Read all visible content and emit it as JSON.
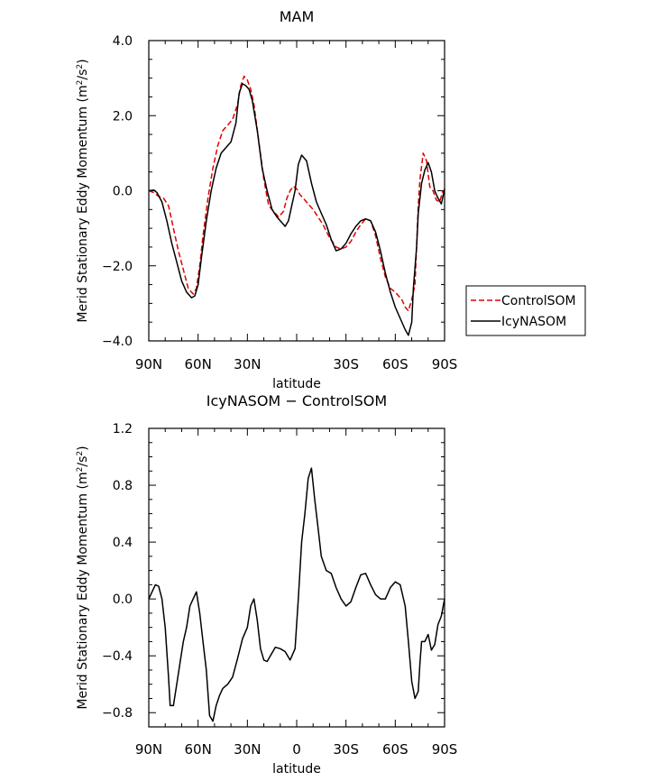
{
  "chart_data": [
    {
      "type": "line",
      "title": "MAM",
      "xlabel": "latitude",
      "ylabel": "Merid Stationary Eddy Momentum (m²/s²)",
      "ylabel_parts": [
        "Merid Stationary Eddy Momentum (m",
        "2",
        "/s",
        "2",
        ")"
      ],
      "xlim": [
        90,
        -90
      ],
      "ylim": [
        -4.0,
        4.0
      ],
      "x_ticks": [
        90,
        60,
        30,
        0,
        -30,
        -60,
        -90
      ],
      "x_tick_labels": [
        "90N",
        "60N",
        "30N",
        "",
        "30S",
        "60S",
        "90S"
      ],
      "y_ticks": [
        -4.0,
        -2.0,
        0.0,
        2.0,
        4.0
      ],
      "y_tick_labels": [
        "−4.0",
        "−2.0",
        "0.0",
        "2.0",
        "4.0"
      ],
      "legend": {
        "placement": "right-outside",
        "entries": [
          {
            "label": "ControlSOM",
            "color": "#e00000",
            "dash": "6,3"
          },
          {
            "label": "IcyNASOM",
            "color": "#000000",
            "dash": ""
          }
        ]
      },
      "series": [
        {
          "name": "ControlSOM",
          "color": "#e00000",
          "dash": "6,3",
          "x": [
            90,
            87,
            84,
            81,
            78,
            75,
            72,
            69,
            66,
            63,
            61,
            59,
            57,
            54,
            51,
            48,
            45,
            42,
            39,
            36,
            34,
            32,
            30,
            28,
            26,
            23,
            20,
            17,
            14,
            11,
            8,
            6,
            4,
            2,
            0,
            -2,
            -4,
            -7,
            -10,
            -13,
            -16,
            -20,
            -24,
            -27,
            -30,
            -33,
            -36,
            -39,
            -42,
            -45,
            -48,
            -51,
            -54,
            -57,
            -60,
            -62,
            -64,
            -66,
            -68,
            -70,
            -72,
            -74,
            -75,
            -77,
            -79,
            -81,
            -83,
            -85,
            -87,
            -89
          ],
          "y": [
            0.0,
            -0.05,
            -0.15,
            -0.2,
            -0.4,
            -1.0,
            -1.6,
            -2.1,
            -2.6,
            -2.75,
            -2.6,
            -2.0,
            -1.2,
            -0.2,
            0.6,
            1.2,
            1.6,
            1.75,
            1.9,
            2.3,
            2.8,
            3.05,
            2.95,
            2.7,
            2.3,
            1.3,
            0.3,
            -0.4,
            -0.55,
            -0.7,
            -0.55,
            -0.2,
            0.0,
            0.12,
            0.05,
            -0.1,
            -0.2,
            -0.35,
            -0.5,
            -0.7,
            -0.9,
            -1.25,
            -1.5,
            -1.55,
            -1.5,
            -1.35,
            -1.1,
            -0.9,
            -0.75,
            -0.8,
            -1.2,
            -1.8,
            -2.3,
            -2.6,
            -2.7,
            -2.8,
            -2.9,
            -3.1,
            -3.2,
            -2.9,
            -2.5,
            -0.4,
            0.3,
            1.0,
            0.8,
            0.1,
            0.0,
            -0.25,
            -0.3,
            0.0
          ]
        },
        {
          "name": "IcyNASOM",
          "color": "#000000",
          "dash": "",
          "x": [
            90,
            87,
            85,
            82,
            79,
            76,
            73,
            70,
            67,
            64,
            62,
            60,
            58,
            55,
            52,
            49,
            46,
            43,
            40,
            37,
            35,
            33,
            31,
            29,
            27,
            24,
            21,
            18,
            15,
            12,
            9,
            7,
            5,
            3,
            1,
            -1,
            -3,
            -6,
            -9,
            -12,
            -15,
            -18,
            -21,
            -24,
            -27,
            -30,
            -33,
            -36,
            -39,
            -42,
            -45,
            -48,
            -51,
            -54,
            -57,
            -60,
            -63,
            -66,
            -68,
            -70,
            -71,
            -73,
            -74,
            -76,
            -78,
            -80,
            -82,
            -84,
            -86,
            -88,
            -90
          ],
          "y": [
            0.0,
            0.02,
            -0.05,
            -0.3,
            -0.8,
            -1.4,
            -1.9,
            -2.4,
            -2.7,
            -2.85,
            -2.8,
            -2.5,
            -1.8,
            -0.8,
            0.0,
            0.6,
            1.0,
            1.15,
            1.3,
            1.8,
            2.6,
            2.85,
            2.8,
            2.7,
            2.4,
            1.6,
            0.6,
            0.0,
            -0.5,
            -0.7,
            -0.85,
            -0.95,
            -0.8,
            -0.4,
            0.0,
            0.7,
            0.95,
            0.8,
            0.2,
            -0.3,
            -0.6,
            -0.9,
            -1.3,
            -1.6,
            -1.55,
            -1.4,
            -1.15,
            -0.95,
            -0.8,
            -0.75,
            -0.8,
            -1.1,
            -1.6,
            -2.2,
            -2.7,
            -3.1,
            -3.4,
            -3.7,
            -3.85,
            -3.5,
            -2.6,
            -1.5,
            -0.6,
            0.2,
            0.55,
            0.75,
            0.5,
            0.0,
            -0.2,
            -0.35,
            0.05
          ]
        }
      ]
    },
    {
      "type": "line",
      "title": "IcyNASOM − ControlSOM",
      "xlabel": "latitude",
      "ylabel": "Merid Stationary Eddy Momentum (m²/s²)",
      "ylabel_parts": [
        "Merid Stationary Eddy Momentum (m",
        "2",
        "/s",
        "2",
        ")"
      ],
      "xlim": [
        90,
        -90
      ],
      "ylim": [
        -0.9,
        1.2
      ],
      "x_ticks": [
        90,
        60,
        30,
        0,
        -30,
        -60,
        -90
      ],
      "x_tick_labels": [
        "90N",
        "60N",
        "30N",
        "0",
        "30S",
        "60S",
        "90S"
      ],
      "y_ticks": [
        -0.8,
        -0.4,
        0.0,
        0.4,
        0.8,
        1.2
      ],
      "y_tick_labels": [
        "−0.8",
        "−0.4",
        "0.0",
        "0.4",
        "0.8",
        "1.2"
      ],
      "series": [
        {
          "name": "",
          "color": "#000000",
          "dash": "",
          "x": [
            90,
            88,
            86,
            84,
            82,
            80,
            78,
            77,
            75,
            73,
            71,
            69,
            67,
            65,
            63,
            61,
            59,
            57,
            55,
            53,
            51,
            49,
            47,
            45,
            42,
            39,
            36,
            33,
            30,
            28,
            26,
            24,
            22,
            20,
            18,
            16,
            13,
            10,
            7,
            4,
            1,
            -1,
            -3,
            -5,
            -7,
            -9,
            -11,
            -13,
            -15,
            -18,
            -21,
            -24,
            -27,
            -30,
            -33,
            -36,
            -39,
            -42,
            -45,
            -48,
            -51,
            -54,
            -57,
            -60,
            -63,
            -66,
            -68,
            -70,
            -72,
            -74,
            -75,
            -76,
            -78,
            -80,
            -82,
            -84,
            -86,
            -88,
            -90
          ],
          "y": [
            0.0,
            0.05,
            0.1,
            0.09,
            0.0,
            -0.2,
            -0.55,
            -0.75,
            -0.75,
            -0.6,
            -0.45,
            -0.3,
            -0.2,
            -0.05,
            0.0,
            0.05,
            -0.1,
            -0.3,
            -0.5,
            -0.82,
            -0.86,
            -0.75,
            -0.68,
            -0.63,
            -0.6,
            -0.55,
            -0.42,
            -0.28,
            -0.2,
            -0.05,
            0.0,
            -0.15,
            -0.35,
            -0.43,
            -0.44,
            -0.4,
            -0.34,
            -0.35,
            -0.37,
            -0.43,
            -0.35,
            0.0,
            0.4,
            0.6,
            0.85,
            0.92,
            0.7,
            0.5,
            0.3,
            0.2,
            0.18,
            0.08,
            0.0,
            -0.05,
            -0.02,
            0.08,
            0.17,
            0.18,
            0.1,
            0.03,
            0.0,
            0.0,
            0.08,
            0.12,
            0.1,
            -0.05,
            -0.3,
            -0.58,
            -0.7,
            -0.65,
            -0.45,
            -0.3,
            -0.3,
            -0.25,
            -0.36,
            -0.32,
            -0.18,
            -0.12,
            0.0
          ]
        }
      ]
    }
  ]
}
